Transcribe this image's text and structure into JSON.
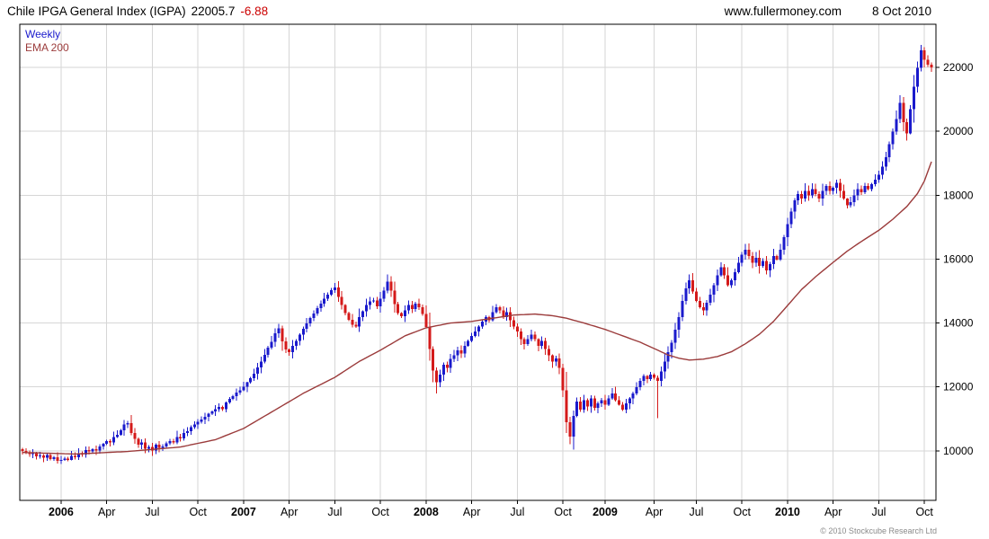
{
  "header": {
    "title": "Chile IPGA General Index (IGPA)",
    "last_value": "22005.7",
    "change": "-6.88",
    "website": "www.fullermoney.com",
    "date": "8 Oct 2010"
  },
  "legend": {
    "series1": "Weekly",
    "series2": "EMA 200"
  },
  "footer": {
    "copyright": "© 2010 Stockcube Research Ltd"
  },
  "colors": {
    "up": "#1a1acc",
    "down": "#d41a1a",
    "ema": "#9b3b3b",
    "change_text": "#cc0000",
    "grid": "#d6d6d6",
    "axis_text": "#000000",
    "border": "#000000",
    "legend_weekly": "#1a1acc",
    "legend_ema": "#9b3b3b"
  },
  "chart_data": {
    "type": "candlestick",
    "title": "Chile IPGA General Index (IGPA)",
    "timeframe": "Weekly",
    "overlay": "EMA 200",
    "last_close": 22005.7,
    "change": -6.88,
    "ylim": [
      8450,
      23350
    ],
    "y_ticks": [
      10000,
      12000,
      14000,
      16000,
      18000,
      20000,
      22000
    ],
    "x_ticks": [
      {
        "label": "2006",
        "week": 11,
        "year": true
      },
      {
        "label": "Apr",
        "week": 24
      },
      {
        "label": "Jul",
        "week": 37
      },
      {
        "label": "Oct",
        "week": 50
      },
      {
        "label": "2007",
        "week": 63,
        "year": true
      },
      {
        "label": "Apr",
        "week": 76
      },
      {
        "label": "Jul",
        "week": 89
      },
      {
        "label": "Oct",
        "week": 102
      },
      {
        "label": "2008",
        "week": 115,
        "year": true
      },
      {
        "label": "Apr",
        "week": 128
      },
      {
        "label": "Jul",
        "week": 141
      },
      {
        "label": "Oct",
        "week": 154
      },
      {
        "label": "2009",
        "week": 166,
        "year": true
      },
      {
        "label": "Apr",
        "week": 180
      },
      {
        "label": "Jul",
        "week": 192
      },
      {
        "label": "Oct",
        "week": 205
      },
      {
        "label": "2010",
        "week": 218,
        "year": true
      },
      {
        "label": "Apr",
        "week": 231
      },
      {
        "label": "Jul",
        "week": 244
      },
      {
        "label": "Oct",
        "week": 257
      }
    ],
    "weekly_closes": [
      10000,
      9950,
      9900,
      9930,
      9830,
      9860,
      9790,
      9870,
      9740,
      9800,
      9680,
      9720,
      9760,
      9720,
      9840,
      9800,
      9930,
      9890,
      10030,
      9980,
      10050,
      10010,
      10130,
      10220,
      10300,
      10260,
      10430,
      10500,
      10640,
      10820,
      10870,
      10560,
      10380,
      10190,
      10260,
      10060,
      10120,
      10010,
      10190,
      10090,
      10140,
      10230,
      10310,
      10260,
      10430,
      10390,
      10560,
      10620,
      10740,
      10820,
      10910,
      10980,
      11060,
      11160,
      11230,
      11300,
      11370,
      11300,
      11510,
      11620,
      11710,
      11830,
      11900,
      12010,
      12140,
      12270,
      12420,
      12610,
      12800,
      13010,
      13230,
      13410,
      13680,
      13840,
      13420,
      13180,
      13090,
      13290,
      13440,
      13640,
      13820,
      13990,
      14160,
      14300,
      14470,
      14610,
      14760,
      14890,
      15030,
      15110,
      14820,
      14560,
      14310,
      14100,
      13940,
      13890,
      14190,
      14370,
      14560,
      14680,
      14710,
      14520,
      14760,
      15010,
      15290,
      15010,
      14590,
      14310,
      14210,
      14390,
      14560,
      14440,
      14610,
      14500,
      14290,
      13880,
      13190,
      12510,
      12140,
      12390,
      12690,
      12590,
      12880,
      12990,
      13140,
      13040,
      13290,
      13440,
      13590,
      13740,
      13890,
      14040,
      14190,
      14090,
      14340,
      14490,
      14390,
      14190,
      14340,
      14090,
      13890,
      13740,
      13490,
      13340,
      13490,
      13640,
      13490,
      13290,
      13440,
      13190,
      12990,
      12790,
      12890,
      12590,
      11890,
      10890,
      10440,
      11090,
      11540,
      11290,
      11590,
      11390,
      11640,
      11340,
      11490,
      11590,
      11440,
      11640,
      11790,
      11590,
      11440,
      11290,
      11490,
      11640,
      11790,
      11990,
      12190,
      12340,
      12240,
      12390,
      12290,
      12190,
      12490,
      12790,
      13090,
      13390,
      13790,
      14190,
      14690,
      15090,
      15340,
      14990,
      14690,
      14490,
      14390,
      14640,
      14890,
      15190,
      15490,
      15740,
      15490,
      15190,
      15340,
      15590,
      15890,
      16140,
      16290,
      16090,
      15890,
      16040,
      15790,
      15940,
      15640,
      15840,
      16090,
      15990,
      16290,
      16690,
      17090,
      17490,
      17840,
      18040,
      17890,
      18140,
      17990,
      18190,
      18040,
      17890,
      18140,
      18290,
      18140,
      18240,
      18390,
      18140,
      17890,
      17690,
      17790,
      17990,
      18190,
      18090,
      18290,
      18190,
      18340,
      18490,
      18640,
      18890,
      19190,
      19590,
      19990,
      20390,
      20890,
      20290,
      19940,
      20690,
      21390,
      21990,
      22540,
      22240,
      22090,
      22005.7
    ],
    "wick_overrides": [
      {
        "week": 29,
        "high": 10960
      },
      {
        "week": 104,
        "high": 15520
      },
      {
        "week": 118,
        "low": 11790
      },
      {
        "week": 156,
        "low": 10210
      },
      {
        "week": 181,
        "low": 11020
      },
      {
        "week": 190,
        "high": 15520
      },
      {
        "week": 199,
        "high": 15900
      },
      {
        "week": 256,
        "high": 22700
      }
    ],
    "ema_points": [
      [
        0,
        9950
      ],
      [
        15,
        9900
      ],
      [
        30,
        9980
      ],
      [
        45,
        10120
      ],
      [
        55,
        10350
      ],
      [
        63,
        10700
      ],
      [
        70,
        11150
      ],
      [
        80,
        11800
      ],
      [
        89,
        12300
      ],
      [
        96,
        12800
      ],
      [
        102,
        13150
      ],
      [
        109,
        13600
      ],
      [
        115,
        13850
      ],
      [
        122,
        14000
      ],
      [
        128,
        14050
      ],
      [
        134,
        14150
      ],
      [
        140,
        14250
      ],
      [
        146,
        14280
      ],
      [
        151,
        14230
      ],
      [
        155,
        14150
      ],
      [
        160,
        14000
      ],
      [
        166,
        13800
      ],
      [
        171,
        13600
      ],
      [
        176,
        13400
      ],
      [
        181,
        13150
      ],
      [
        184,
        13000
      ],
      [
        187,
        12900
      ],
      [
        190,
        12840
      ],
      [
        194,
        12870
      ],
      [
        198,
        12950
      ],
      [
        202,
        13100
      ],
      [
        206,
        13350
      ],
      [
        210,
        13650
      ],
      [
        214,
        14050
      ],
      [
        218,
        14550
      ],
      [
        222,
        15050
      ],
      [
        226,
        15450
      ],
      [
        231,
        15900
      ],
      [
        235,
        16250
      ],
      [
        239,
        16550
      ],
      [
        244,
        16900
      ],
      [
        248,
        17250
      ],
      [
        252,
        17650
      ],
      [
        255,
        18050
      ],
      [
        257,
        18450
      ],
      [
        259,
        19050
      ]
    ]
  }
}
